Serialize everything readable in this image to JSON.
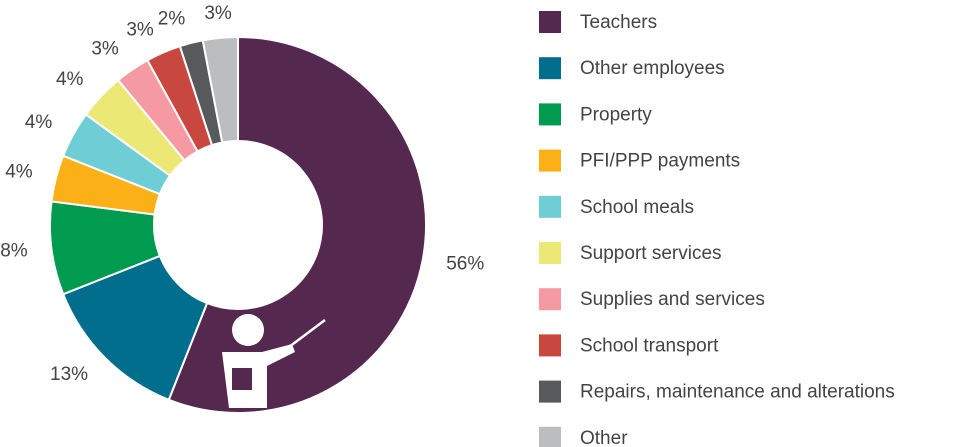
{
  "chart_data": {
    "type": "pie",
    "categories": [
      "Teachers",
      "Other employees",
      "Property",
      "PFI/PPP payments",
      "School meals",
      "Support services",
      "Supplies and services",
      "School transport",
      "Repairs, maintenance and alterations",
      "Other"
    ],
    "values": [
      56,
      13,
      8,
      4,
      4,
      4,
      3,
      3,
      2,
      3
    ],
    "value_labels": [
      "56%",
      "13%",
      "8%",
      "4%",
      "4%",
      "4%",
      "3%",
      "3%",
      "2%",
      "3%"
    ],
    "colors": [
      "#55284f",
      "#006e8c",
      "#009b4e",
      "#fbb018",
      "#6ecdd5",
      "#ebe875",
      "#f59aa3",
      "#c8473f",
      "#58595b",
      "#bcbdbe"
    ],
    "legend": "right"
  }
}
